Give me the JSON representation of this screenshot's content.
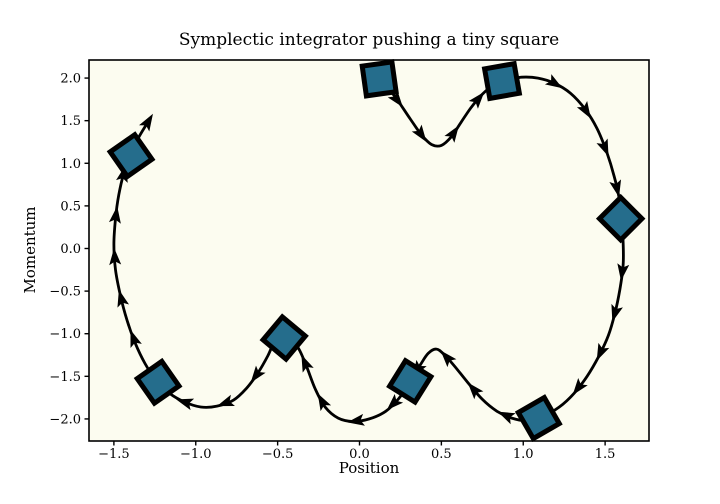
{
  "title": "Symplectic integrator pushing a tiny square",
  "chart_data": {
    "type": "line",
    "title": "Symplectic integrator pushing a tiny square",
    "xlabel": "Position",
    "ylabel": "Momentum",
    "xlim": [
      -1.652,
      1.768
    ],
    "ylim": [
      -2.259,
      2.212
    ],
    "grid": false,
    "legend": "none",
    "background_color": "#fcfcf0",
    "figure_color": "#ffffff",
    "line_color": "#000000",
    "square_fill": "#256d8c",
    "square_edge": "#000000",
    "xticks": [
      {
        "v": -1.5,
        "label": "−1.5"
      },
      {
        "v": -1.0,
        "label": "−1.0"
      },
      {
        "v": -0.5,
        "label": "−0.5"
      },
      {
        "v": 0.0,
        "label": "0.0"
      },
      {
        "v": 0.5,
        "label": "0.5"
      },
      {
        "v": 1.0,
        "label": "1.0"
      },
      {
        "v": 1.5,
        "label": "1.5"
      }
    ],
    "yticks": [
      {
        "v": 2.0,
        "label": "2.0"
      },
      {
        "v": 1.5,
        "label": "1.5"
      },
      {
        "v": 1.0,
        "label": "1.0"
      },
      {
        "v": 0.5,
        "label": "0.5"
      },
      {
        "v": 0.0,
        "label": "0.0"
      },
      {
        "v": -0.5,
        "label": "−0.5"
      },
      {
        "v": -1.0,
        "label": "−1.0"
      },
      {
        "v": -1.5,
        "label": "−1.5"
      },
      {
        "v": -2.0,
        "label": "−2.0"
      }
    ],
    "trajectory": [
      [
        0.12,
        1.99
      ],
      [
        0.18,
        1.87
      ],
      [
        0.24,
        1.72
      ],
      [
        0.31,
        1.52
      ],
      [
        0.38,
        1.33
      ],
      [
        0.44,
        1.22
      ],
      [
        0.5,
        1.21
      ],
      [
        0.56,
        1.31
      ],
      [
        0.62,
        1.48
      ],
      [
        0.68,
        1.65
      ],
      [
        0.75,
        1.81
      ],
      [
        0.82,
        1.92
      ],
      [
        0.9,
        1.98
      ],
      [
        0.99,
        2.01
      ],
      [
        1.09,
        2.0
      ],
      [
        1.19,
        1.94
      ],
      [
        1.29,
        1.82
      ],
      [
        1.38,
        1.63
      ],
      [
        1.45,
        1.41
      ],
      [
        1.51,
        1.13
      ],
      [
        1.555,
        0.85
      ],
      [
        1.585,
        0.6
      ],
      [
        1.6,
        0.35
      ],
      [
        1.61,
        0.08
      ],
      [
        1.61,
        -0.2
      ],
      [
        1.59,
        -0.48
      ],
      [
        1.56,
        -0.76
      ],
      [
        1.52,
        -1.02
      ],
      [
        1.46,
        -1.27
      ],
      [
        1.39,
        -1.5
      ],
      [
        1.31,
        -1.7
      ],
      [
        1.22,
        -1.86
      ],
      [
        1.12,
        -1.97
      ],
      [
        1.02,
        -2.02
      ],
      [
        0.93,
        -1.99
      ],
      [
        0.84,
        -1.91
      ],
      [
        0.75,
        -1.77
      ],
      [
        0.66,
        -1.57
      ],
      [
        0.58,
        -1.38
      ],
      [
        0.52,
        -1.25
      ],
      [
        0.47,
        -1.18
      ],
      [
        0.42,
        -1.23
      ],
      [
        0.37,
        -1.37
      ],
      [
        0.31,
        -1.56
      ],
      [
        0.24,
        -1.76
      ],
      [
        0.16,
        -1.91
      ],
      [
        0.06,
        -2.0
      ],
      [
        -0.04,
        -2.03
      ],
      [
        -0.13,
        -1.99
      ],
      [
        -0.21,
        -1.86
      ],
      [
        -0.27,
        -1.65
      ],
      [
        -0.32,
        -1.4
      ],
      [
        -0.37,
        -1.18
      ],
      [
        -0.42,
        -1.07
      ],
      [
        -0.47,
        -1.04
      ],
      [
        -0.52,
        -1.1
      ],
      [
        -0.56,
        -1.26
      ],
      [
        -0.62,
        -1.46
      ],
      [
        -0.69,
        -1.64
      ],
      [
        -0.77,
        -1.78
      ],
      [
        -0.87,
        -1.85
      ],
      [
        -0.97,
        -1.86
      ],
      [
        -1.07,
        -1.8
      ],
      [
        -1.16,
        -1.7
      ],
      [
        -1.24,
        -1.55
      ],
      [
        -1.31,
        -1.35
      ],
      [
        -1.37,
        -1.11
      ],
      [
        -1.42,
        -0.84
      ],
      [
        -1.46,
        -0.55
      ],
      [
        -1.49,
        -0.25
      ],
      [
        -1.5,
        0.05
      ],
      [
        -1.49,
        0.35
      ],
      [
        -1.47,
        0.63
      ],
      [
        -1.44,
        0.88
      ],
      [
        -1.4,
        1.1
      ],
      [
        -1.35,
        1.3
      ],
      [
        -1.29,
        1.49
      ]
    ],
    "squares": [
      {
        "x": 0.12,
        "y": 1.99,
        "angle": -8
      },
      {
        "x": 0.87,
        "y": 1.965,
        "angle": -10
      },
      {
        "x": 1.595,
        "y": 0.35,
        "angle": 45
      },
      {
        "x": 1.095,
        "y": -1.99,
        "angle": -30
      },
      {
        "x": 0.31,
        "y": -1.56,
        "angle": 32
      },
      {
        "x": -0.46,
        "y": -1.05,
        "angle": 40
      },
      {
        "x": -1.23,
        "y": -1.57,
        "angle": 55
      },
      {
        "x": -1.395,
        "y": 1.09,
        "angle": 55
      }
    ]
  }
}
